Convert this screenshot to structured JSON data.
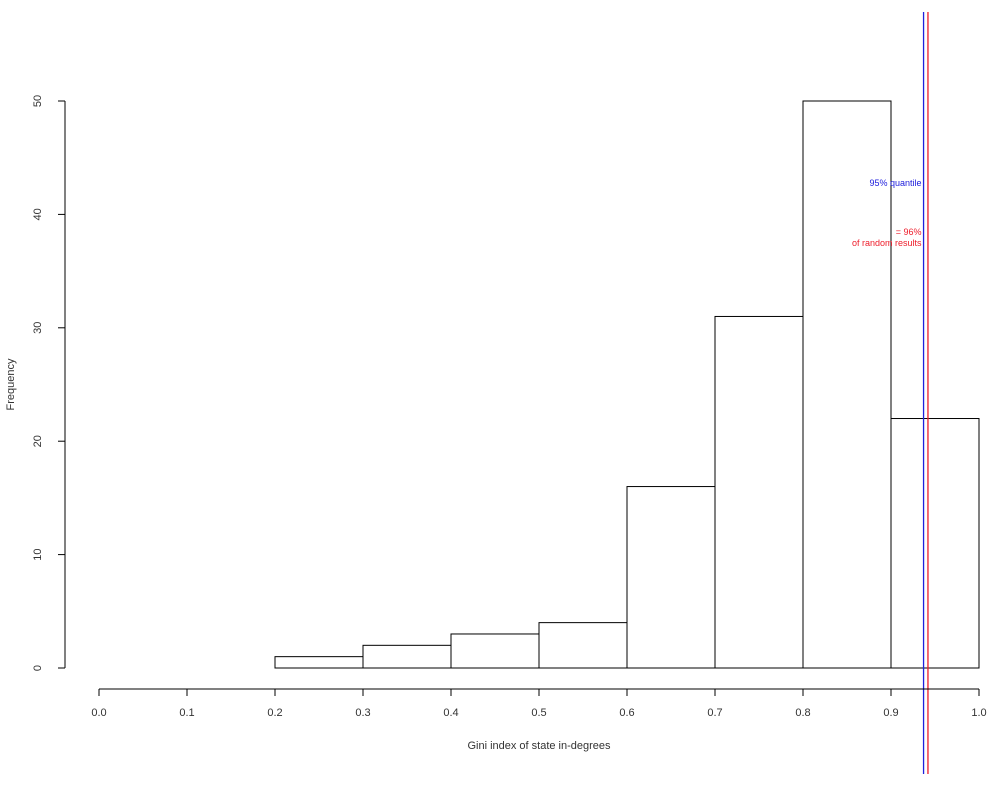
{
  "chart_data": {
    "type": "bar",
    "xlabel": "Gini index of state in-degrees",
    "ylabel": "Frequency",
    "xlim": [
      0.0,
      1.0
    ],
    "ylim": [
      0,
      50
    ],
    "x_ticks": [
      "0.0",
      "0.1",
      "0.2",
      "0.3",
      "0.4",
      "0.5",
      "0.6",
      "0.7",
      "0.8",
      "0.9",
      "1.0"
    ],
    "y_ticks": [
      "0",
      "10",
      "20",
      "30",
      "40",
      "50"
    ],
    "bins": [
      {
        "from": 0.2,
        "to": 0.3,
        "count": 1
      },
      {
        "from": 0.3,
        "to": 0.4,
        "count": 2
      },
      {
        "from": 0.4,
        "to": 0.5,
        "count": 3
      },
      {
        "from": 0.5,
        "to": 0.6,
        "count": 4
      },
      {
        "from": 0.6,
        "to": 0.7,
        "count": 16
      },
      {
        "from": 0.7,
        "to": 0.8,
        "count": 31
      },
      {
        "from": 0.8,
        "to": 0.9,
        "count": 50
      },
      {
        "from": 0.9,
        "to": 1.0,
        "count": 22
      }
    ],
    "reference_lines": [
      {
        "x": 0.937,
        "color": "#2020dd",
        "label_lines": [
          "95% quantile"
        ],
        "label_y": 42.5
      },
      {
        "x": 0.942,
        "color": "#ee1c2a",
        "label_lines": [
          "= 96%",
          "of random results"
        ],
        "label_y": 38.2
      }
    ],
    "grid": false,
    "legend": "none"
  }
}
